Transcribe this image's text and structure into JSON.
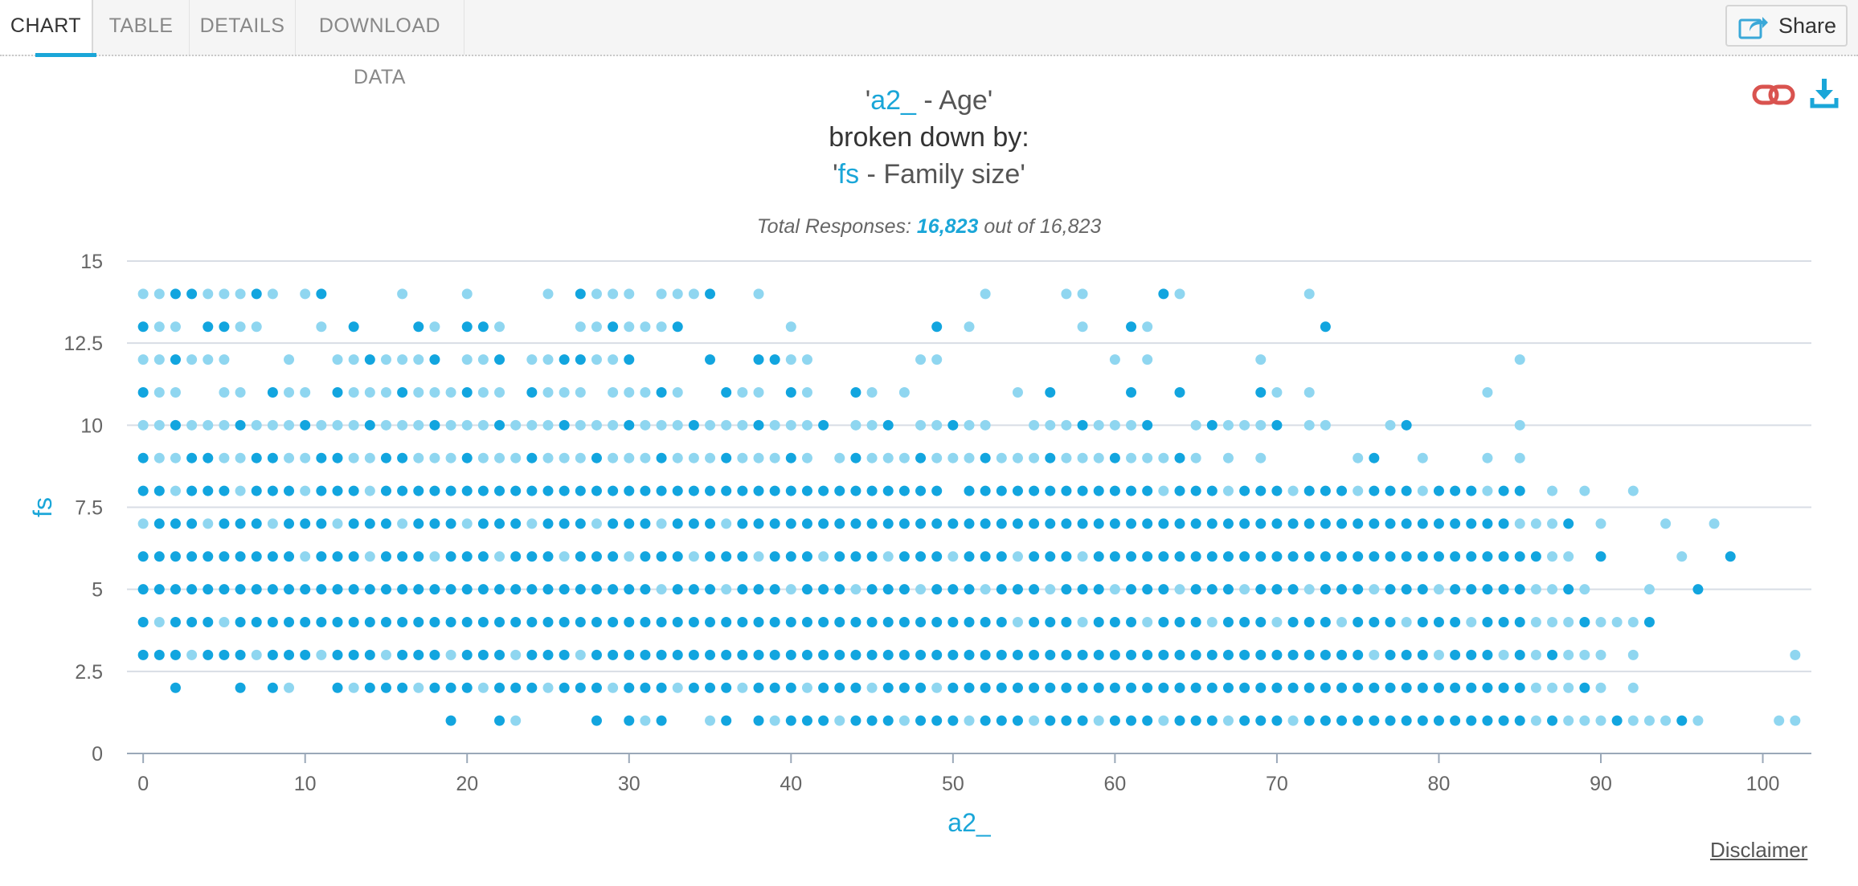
{
  "tabs": [
    {
      "label": "CHART",
      "active": true
    },
    {
      "label": "TABLE",
      "active": false
    },
    {
      "label": "DETAILS",
      "active": false
    },
    {
      "label": "DOWNLOAD DATA",
      "active": false
    }
  ],
  "share": {
    "label": "Share",
    "icon": "share-icon"
  },
  "toolbar_icons": [
    "link-icon",
    "download-icon"
  ],
  "header": {
    "var1_code": "a2_",
    "var1_label": " - Age'",
    "breakdown": "broken down by:",
    "var2_code": "fs",
    "var2_label": " - Family size'"
  },
  "total": {
    "prefix": "Total Responses: ",
    "count": "16,823",
    "suffix": " out of 16,823"
  },
  "disclaimer": "Disclaimer",
  "colors": {
    "accent": "#1aa6d8",
    "point_dark": "#12a5df",
    "point_light": "#8fd6f0"
  },
  "chart_data": {
    "type": "scatter",
    "xlabel": "a2_",
    "ylabel": "fs",
    "xlim": [
      -1,
      103
    ],
    "ylim": [
      0,
      15
    ],
    "xticks": [
      "0",
      "10",
      "20",
      "30",
      "40",
      "50",
      "60",
      "70",
      "80",
      "90",
      "100"
    ],
    "yticks": [
      "0",
      "2.5",
      "5",
      "7.5",
      "10",
      "12.5",
      "15"
    ],
    "grid": "horizontal",
    "rows": [
      {
        "y": 1,
        "ranges": [
          [
            19,
            19
          ],
          [
            22,
            23
          ],
          [
            28,
            28
          ],
          [
            30,
            32
          ],
          [
            35,
            36
          ],
          [
            38,
            41
          ],
          [
            42,
            96
          ],
          [
            101,
            102
          ]
        ]
      },
      {
        "y": 2,
        "ranges": [
          [
            2,
            2
          ],
          [
            6,
            6
          ],
          [
            8,
            9
          ],
          [
            12,
            90
          ],
          [
            92,
            92
          ]
        ]
      },
      {
        "y": 3,
        "ranges": [
          [
            0,
            90
          ],
          [
            92,
            92
          ],
          [
            102,
            102
          ]
        ]
      },
      {
        "y": 4,
        "ranges": [
          [
            0,
            93
          ]
        ]
      },
      {
        "y": 5,
        "ranges": [
          [
            0,
            89
          ],
          [
            93,
            93
          ],
          [
            96,
            96
          ]
        ]
      },
      {
        "y": 6,
        "ranges": [
          [
            0,
            88
          ],
          [
            90,
            90
          ],
          [
            95,
            95
          ],
          [
            98,
            98
          ]
        ]
      },
      {
        "y": 7,
        "ranges": [
          [
            0,
            88
          ],
          [
            90,
            90
          ],
          [
            94,
            94
          ],
          [
            97,
            97
          ]
        ]
      },
      {
        "y": 8,
        "ranges": [
          [
            0,
            49
          ],
          [
            51,
            85
          ],
          [
            87,
            87
          ],
          [
            89,
            89
          ],
          [
            92,
            92
          ]
        ]
      },
      {
        "y": 9,
        "ranges": [
          [
            0,
            41
          ],
          [
            43,
            65
          ],
          [
            67,
            67
          ],
          [
            69,
            69
          ],
          [
            75,
            76
          ],
          [
            79,
            79
          ],
          [
            83,
            83
          ],
          [
            85,
            85
          ]
        ]
      },
      {
        "y": 10,
        "ranges": [
          [
            0,
            42
          ],
          [
            44,
            46
          ],
          [
            48,
            52
          ],
          [
            55,
            62
          ],
          [
            65,
            70
          ],
          [
            72,
            73
          ],
          [
            77,
            78
          ],
          [
            85,
            85
          ]
        ]
      },
      {
        "y": 11,
        "ranges": [
          [
            0,
            2
          ],
          [
            5,
            6
          ],
          [
            8,
            10
          ],
          [
            12,
            22
          ],
          [
            24,
            27
          ],
          [
            29,
            33
          ],
          [
            36,
            38
          ],
          [
            40,
            41
          ],
          [
            44,
            45
          ],
          [
            47,
            47
          ],
          [
            54,
            54
          ],
          [
            56,
            56
          ],
          [
            61,
            61
          ],
          [
            64,
            64
          ],
          [
            69,
            70
          ],
          [
            72,
            72
          ],
          [
            83,
            83
          ]
        ]
      },
      {
        "y": 12,
        "ranges": [
          [
            0,
            5
          ],
          [
            9,
            9
          ],
          [
            12,
            18
          ],
          [
            20,
            22
          ],
          [
            24,
            30
          ],
          [
            35,
            35
          ],
          [
            38,
            41
          ],
          [
            48,
            49
          ],
          [
            60,
            60
          ],
          [
            62,
            62
          ],
          [
            69,
            69
          ],
          [
            85,
            85
          ]
        ]
      },
      {
        "y": 13,
        "ranges": [
          [
            0,
            2
          ],
          [
            4,
            7
          ],
          [
            11,
            11
          ],
          [
            13,
            13
          ],
          [
            17,
            18
          ],
          [
            20,
            22
          ],
          [
            27,
            33
          ],
          [
            40,
            40
          ],
          [
            49,
            49
          ],
          [
            51,
            51
          ],
          [
            58,
            58
          ],
          [
            61,
            62
          ],
          [
            73,
            73
          ]
        ]
      },
      {
        "y": 14,
        "ranges": [
          [
            0,
            8
          ],
          [
            10,
            11
          ],
          [
            16,
            16
          ],
          [
            20,
            20
          ],
          [
            25,
            25
          ],
          [
            27,
            30
          ],
          [
            32,
            35
          ],
          [
            38,
            38
          ],
          [
            52,
            52
          ],
          [
            57,
            58
          ],
          [
            63,
            64
          ],
          [
            72,
            72
          ]
        ]
      }
    ]
  }
}
